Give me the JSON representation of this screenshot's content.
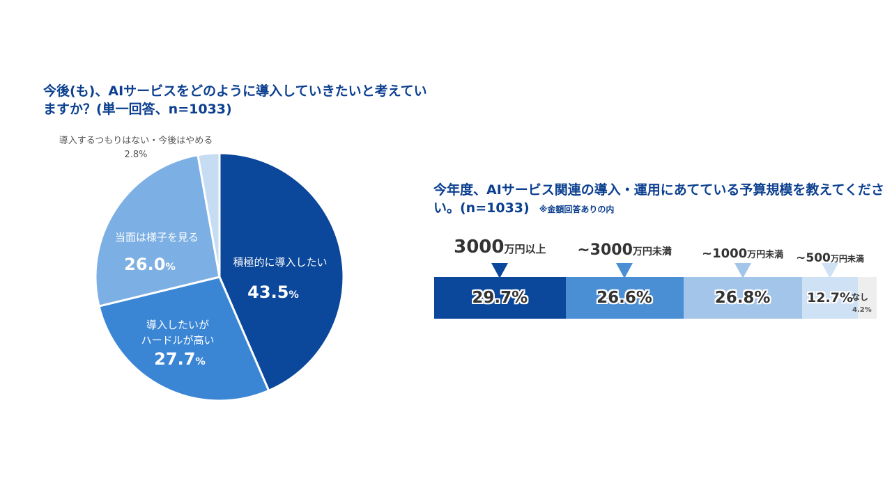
{
  "chart_data": [
    {
      "type": "pie",
      "title": "今後(も)、AIサービスをどのように導入していきたいと考えていますか？(単一回答、n=1033)",
      "slices": [
        {
          "label": "積極的に導入したい",
          "value": 43.5,
          "display": "43.5",
          "color": "#0b479a"
        },
        {
          "label": "導入したいが\nハードルが高い",
          "label1": "導入したいが",
          "label2": "ハードルが高い",
          "value": 27.7,
          "display": "27.7",
          "color": "#3a86d5"
        },
        {
          "label": "当面は様子を見る",
          "value": 26.0,
          "display": "26.0",
          "color": "#7cafe3"
        },
        {
          "label": "導入するつもりはない・今後はやめる",
          "value": 2.8,
          "display": "2.8%",
          "color": "#c5dcf2"
        }
      ],
      "unit": "%"
    },
    {
      "type": "bar",
      "orientation": "stacked-horizontal",
      "title": "今年度、AIサービス関連の導入・運用にあてている予算規模を教えてください。(n=1033)",
      "note": "※金額回答ありの内",
      "segments": [
        {
          "label_num": "3000",
          "label_unit": "万円以上",
          "value": 29.7,
          "display": "29.7%",
          "color": "#0b479a"
        },
        {
          "label_num": "~3000",
          "label_unit": "万円未満",
          "value": 26.6,
          "display": "26.6%",
          "color": "#4a8fd4"
        },
        {
          "label_num": "~1000",
          "label_unit": "万円未満",
          "value": 26.8,
          "display": "26.8%",
          "color": "#a3c5ea"
        },
        {
          "label_num": "~500",
          "label_unit": "万円未満",
          "value": 12.7,
          "display": "12.7%",
          "color": "#cfe1f4"
        },
        {
          "label": "なし",
          "value": 4.2,
          "display": "4.2%",
          "color": "#eeeeee"
        }
      ]
    }
  ]
}
